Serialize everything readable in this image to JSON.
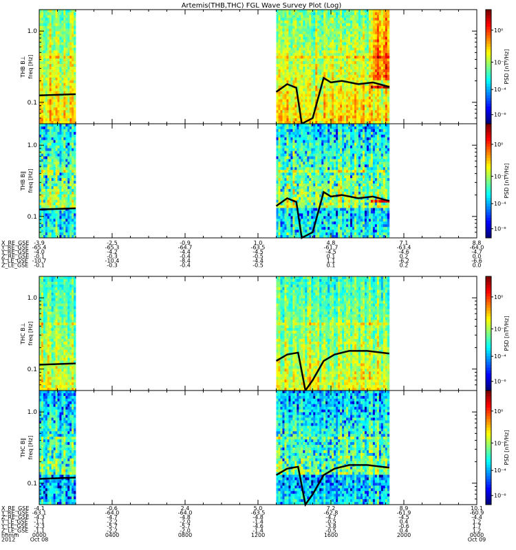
{
  "chart_data": {
    "type": "heatmap",
    "title": "Artemis(THB,THC) FGL Wave Survey Plot (Log)",
    "colorbar": {
      "label": "PSD [nT²/Hz]",
      "ticks": [
        "10⁰",
        "10⁻²",
        "10⁻⁴",
        "10⁻⁶"
      ]
    },
    "panels": [
      {
        "probe": "THB",
        "component": "B⊥",
        "ylabel_top": "THB B⊥",
        "ylabel_bottom": "freq [Hz]",
        "yticks": [
          "1.0",
          "0.1"
        ],
        "ylim": [
          0.05,
          2.0
        ],
        "yscale": "log"
      },
      {
        "probe": "THB",
        "component": "B∥",
        "ylabel_top": "THB B∥",
        "ylabel_bottom": "freq [Hz]",
        "yticks": [
          "1.0",
          "0.1"
        ],
        "ylim": [
          0.05,
          2.0
        ],
        "yscale": "log"
      },
      {
        "probe": "THC",
        "component": "B⊥",
        "ylabel_top": "THC B⊥",
        "ylabel_bottom": "freq [Hz]",
        "yticks": [
          "1.0",
          "0.1"
        ],
        "ylim": [
          0.05,
          2.0
        ],
        "yscale": "log"
      },
      {
        "probe": "THC",
        "component": "B∥",
        "ylabel_top": "THC B∥",
        "ylabel_bottom": "freq [Hz]",
        "yticks": [
          "1.0",
          "0.1"
        ],
        "ylim": [
          0.05,
          2.0
        ],
        "yscale": "log"
      }
    ],
    "x_hours_range": [
      0,
      24
    ],
    "data_intervals_hours": [
      [
        0,
        2.0
      ],
      [
        13.0,
        19.2
      ]
    ],
    "gyro_line_hz": {
      "THB": [
        [
          0.0,
          0.125
        ],
        [
          2.0,
          0.13
        ],
        [
          13.0,
          0.14
        ],
        [
          13.6,
          0.18
        ],
        [
          14.1,
          0.16
        ],
        [
          14.4,
          0.05
        ],
        [
          15.0,
          0.06
        ],
        [
          15.6,
          0.22
        ],
        [
          16.0,
          0.19
        ],
        [
          16.6,
          0.2
        ],
        [
          17.5,
          0.18
        ],
        [
          18.3,
          0.19
        ],
        [
          19.2,
          0.165
        ]
      ],
      "THC": [
        [
          0.0,
          0.115
        ],
        [
          2.0,
          0.12
        ],
        [
          13.0,
          0.13
        ],
        [
          13.6,
          0.16
        ],
        [
          14.2,
          0.17
        ],
        [
          14.6,
          0.05
        ],
        [
          15.0,
          0.07
        ],
        [
          15.6,
          0.13
        ],
        [
          16.2,
          0.16
        ],
        [
          17.0,
          0.18
        ],
        [
          18.0,
          0.18
        ],
        [
          19.2,
          0.165
        ]
      ]
    },
    "ephemeris": [
      {
        "label_cols": [
          "X_RE_GSE",
          "Y_RE_GSE",
          "Y_RE_GSE",
          "Z_RE_GSE",
          "Y_LE_GSE",
          "Z_LE_GSE"
        ],
        "columns": [
          {
            "time": "0000",
            "values": [
              "-3.9",
              "-65.4",
              "-4.0",
              "-0.1",
              "-10.7",
              "-0.1"
            ]
          },
          {
            "time": "0400",
            "values": [
              "-2.5",
              "-65.3",
              "-4.2",
              "-0.3",
              "-10.4",
              "-0.3"
            ]
          },
          {
            "time": "0800",
            "values": [
              "-0.9",
              "-64.7",
              "-4.4",
              "-0.4",
              "-8.4",
              "-0.4"
            ]
          },
          {
            "time": "1200",
            "values": [
              "1.0",
              "-63.5",
              "-4.5",
              "-0.5",
              "-4.4",
              "-0.5"
            ]
          },
          {
            "time": "1600",
            "values": [
              "4.8",
              "-61.7",
              "-4.5",
              "0.1",
              "1.1",
              "0.1"
            ]
          },
          {
            "time": "2000",
            "values": [
              "7.1",
              "-63.4",
              "-4.6",
              "0.2",
              "-6.2",
              "0.2"
            ]
          },
          {
            "time": "0000",
            "values": [
              "8.8",
              "-64.0",
              "-4.7",
              "0.0",
              "-6.6",
              "0.0"
            ]
          }
        ]
      },
      {
        "label_cols": [
          "X_RE_GSE",
          "Y_RE_GSE",
          "Z_RE_GSE",
          "Y_LE_GSE",
          "Y_LE_GSE",
          "Z_LE_GSE",
          "hhmm",
          "2012"
        ],
        "columns": [
          {
            "time": "0000",
            "values": [
              "-4.1",
              "-63.1",
              "-4.3",
              "-1.1",
              "-2.3",
              "-1.1"
            ],
            "date": "Oct 08"
          },
          {
            "time": "0400",
            "values": [
              "-0.6",
              "-64.0",
              "-4.7",
              "-2.2",
              "-5.7",
              "-2.2"
            ],
            "date": ""
          },
          {
            "time": "0800",
            "values": [
              "2.4",
              "-64.0",
              "-4.8",
              "-2.0",
              "-5.7",
              "-2.0"
            ],
            "date": ""
          },
          {
            "time": "1200",
            "values": [
              "5.0",
              "-63.5",
              "-4.8",
              "-1.4",
              "-4.6",
              "-1.4"
            ],
            "date": ""
          },
          {
            "time": "1600",
            "values": [
              "7.2",
              "-62.8",
              "-4.7",
              "-0.5",
              "-3.8",
              "-0.5"
            ],
            "date": ""
          },
          {
            "time": "2000",
            "values": [
              "8.9",
              "-61.9",
              "-4.5",
              "0.4",
              "-0.6",
              "0.4"
            ],
            "date": ""
          },
          {
            "time": "0000",
            "values": [
              "10.1",
              "-60.9",
              "-4.4",
              "1.2",
              "1.7",
              "1.2"
            ],
            "date": "Oct 09"
          }
        ]
      }
    ],
    "hhmm_label": "hhmm",
    "year_label": "2012"
  }
}
